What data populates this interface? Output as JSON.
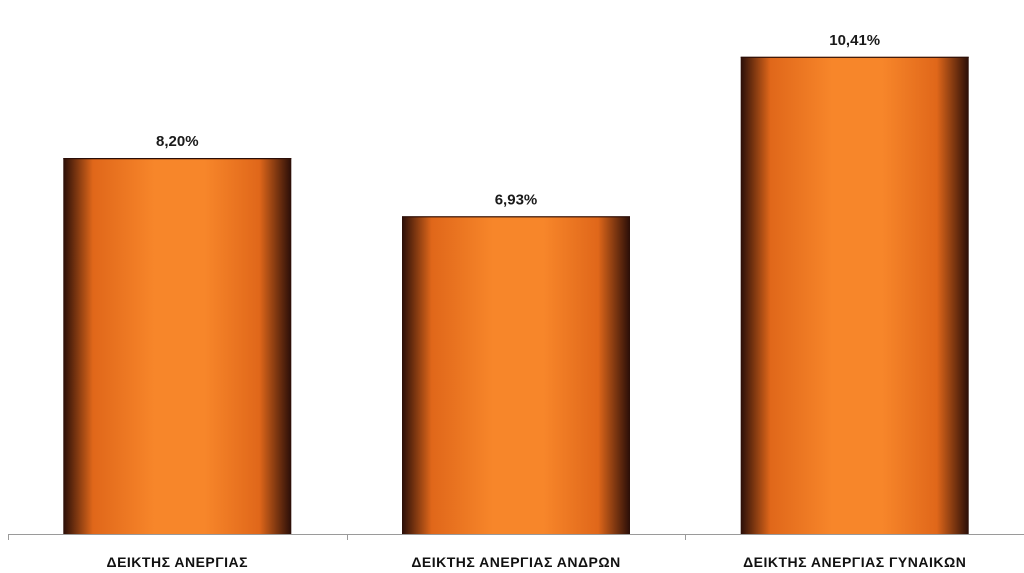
{
  "chart_data": {
    "type": "bar",
    "categories": [
      "ΔΕΙΚΤΗΣ ΑΝΕΡΓΙΑΣ",
      "ΔΕΙΚΤΗΣ ΑΝΕΡΓΙΑΣ ΑΝΔΡΩΝ",
      "ΔΕΙΚΤΗΣ ΑΝΕΡΓΙΑΣ ΓΥΝΑΙΚΩΝ"
    ],
    "values": [
      8.2,
      6.93,
      10.41
    ],
    "data_labels": [
      "8,20%",
      "6,93%",
      "10,41%"
    ],
    "title": "",
    "xlabel": "",
    "ylabel": "",
    "ylim": [
      0,
      11.3
    ],
    "grid": false,
    "legend": "none",
    "bar_style": "cylinder",
    "colors": {
      "bar_light": "#f7862a",
      "bar_mid": "#e0671a",
      "bar_dark": "#2a0e08",
      "axis": "#9a9a9a"
    }
  }
}
